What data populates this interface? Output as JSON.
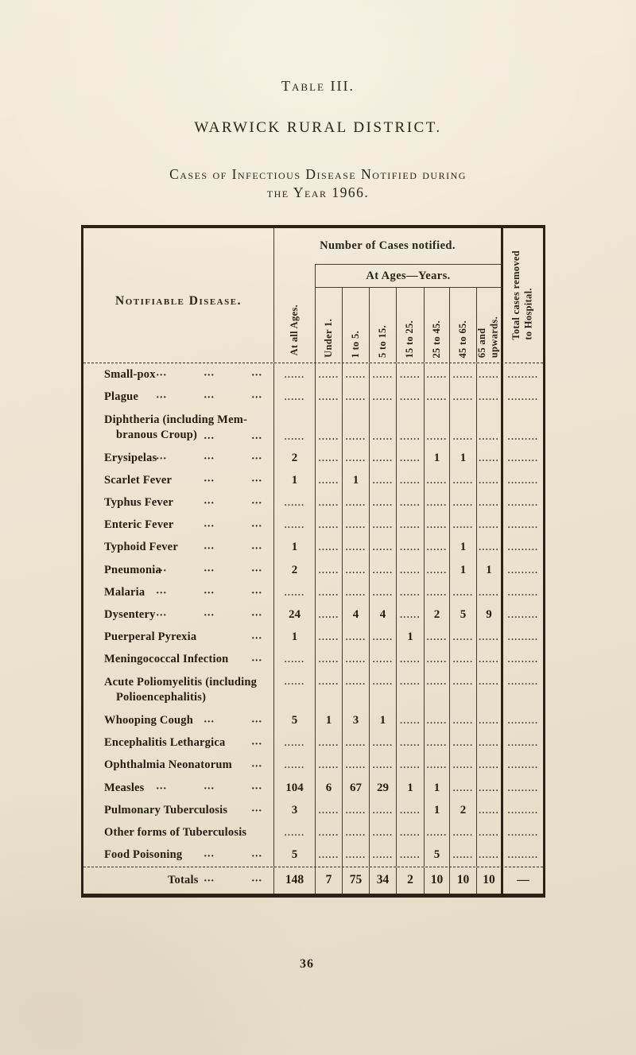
{
  "titles": {
    "table_label": "Table III.",
    "district": "WARWICK RURAL DISTRICT.",
    "caption": "Cases of Infectious Disease Notified during\nthe Year 1966."
  },
  "page_number": "36",
  "table": {
    "disease_header": "Notifiable Disease.",
    "cases_header": "Number of Cases notified.",
    "ages_header": "At Ages—Years.",
    "all_ages_col": "At all Ages.",
    "age_cols": [
      "Under 1.",
      "1 to 5.",
      "5 to 15.",
      "15 to 25.",
      "25 to 45.",
      "45 to 65.",
      "65 and\nupwards."
    ],
    "total_col": "Total cases removed\nto Hospital.",
    "leader_glyph": "...",
    "empty_cell_dots": "......",
    "empty_total_dots": ".........",
    "rows": [
      {
        "label": "Small-pox",
        "leaders": 3,
        "values": [
          "",
          "",
          "",
          "",
          "",
          "",
          "",
          "",
          ""
        ]
      },
      {
        "label": "Plague",
        "leaders": 3,
        "values": [
          "",
          "",
          "",
          "",
          "",
          "",
          "",
          "",
          ""
        ]
      },
      {
        "label": "Diphtheria (including Mem-",
        "label2": "branous Croup)",
        "leaders": 2,
        "values": [
          "",
          "",
          "",
          "",
          "",
          "",
          "",
          "",
          ""
        ]
      },
      {
        "label": "Erysipelas",
        "leaders": 3,
        "values": [
          "2",
          "",
          "",
          "",
          "",
          "1",
          "1",
          "",
          ""
        ]
      },
      {
        "label": "Scarlet Fever",
        "leaders": 2,
        "values": [
          "1",
          "",
          "1",
          "",
          "",
          "",
          "",
          "",
          ""
        ]
      },
      {
        "label": "Typhus Fever",
        "leaders": 2,
        "values": [
          "",
          "",
          "",
          "",
          "",
          "",
          "",
          "",
          ""
        ]
      },
      {
        "label": "Enteric Fever",
        "leaders": 2,
        "values": [
          "",
          "",
          "",
          "",
          "",
          "",
          "",
          "",
          ""
        ]
      },
      {
        "label": "Typhoid Fever",
        "leaders": 2,
        "values": [
          "1",
          "",
          "",
          "",
          "",
          "",
          "1",
          "",
          ""
        ]
      },
      {
        "label": "Pneumonia",
        "leaders": 3,
        "values": [
          "2",
          "",
          "",
          "",
          "",
          "",
          "1",
          "1",
          ""
        ]
      },
      {
        "label": "Malaria",
        "leaders": 3,
        "values": [
          "",
          "",
          "",
          "",
          "",
          "",
          "",
          "",
          ""
        ]
      },
      {
        "label": "Dysentery",
        "leaders": 3,
        "values": [
          "24",
          "",
          "4",
          "4",
          "",
          "2",
          "5",
          "9",
          ""
        ]
      },
      {
        "label": "Puerperal Pyrexia",
        "leaders": 1,
        "values": [
          "1",
          "",
          "",
          "",
          "1",
          "",
          "",
          "",
          ""
        ]
      },
      {
        "label": "Meningococcal Infection",
        "leaders": 1,
        "values": [
          "",
          "",
          "",
          "",
          "",
          "",
          "",
          "",
          ""
        ]
      },
      {
        "label": "Acute Poliomyelitis (including",
        "label2": "Polioencephalitis)",
        "leaders": 0,
        "values": [
          "",
          "",
          "",
          "",
          "",
          "",
          "",
          "",
          ""
        ]
      },
      {
        "label": "Whooping Cough",
        "leaders": 2,
        "values": [
          "5",
          "1",
          "3",
          "1",
          "",
          "",
          "",
          "",
          ""
        ]
      },
      {
        "label": "Encephalitis Lethargica",
        "leaders": 1,
        "values": [
          "",
          "",
          "",
          "",
          "",
          "",
          "",
          "",
          ""
        ]
      },
      {
        "label": "Ophthalmia Neonatorum",
        "leaders": 1,
        "values": [
          "",
          "",
          "",
          "",
          "",
          "",
          "",
          "",
          ""
        ]
      },
      {
        "label": "Measles",
        "leaders": 3,
        "values": [
          "104",
          "6",
          "67",
          "29",
          "1",
          "1",
          "",
          "",
          ""
        ]
      },
      {
        "label": "Pulmonary Tuberculosis",
        "leaders": 1,
        "values": [
          "3",
          "",
          "",
          "",
          "",
          "1",
          "2",
          "",
          ""
        ]
      },
      {
        "label": "Other forms of Tuberculosis",
        "leaders": 0,
        "values": [
          "",
          "",
          "",
          "",
          "",
          "",
          "",
          "",
          ""
        ]
      },
      {
        "label": "Food Poisoning",
        "leaders": 2,
        "values": [
          "5",
          "",
          "",
          "",
          "",
          "5",
          "",
          "",
          ""
        ]
      }
    ],
    "totals": {
      "label": "Totals",
      "leaders": 2,
      "values": [
        "148",
        "7",
        "75",
        "34",
        "2",
        "10",
        "10",
        "10",
        "—"
      ]
    }
  }
}
